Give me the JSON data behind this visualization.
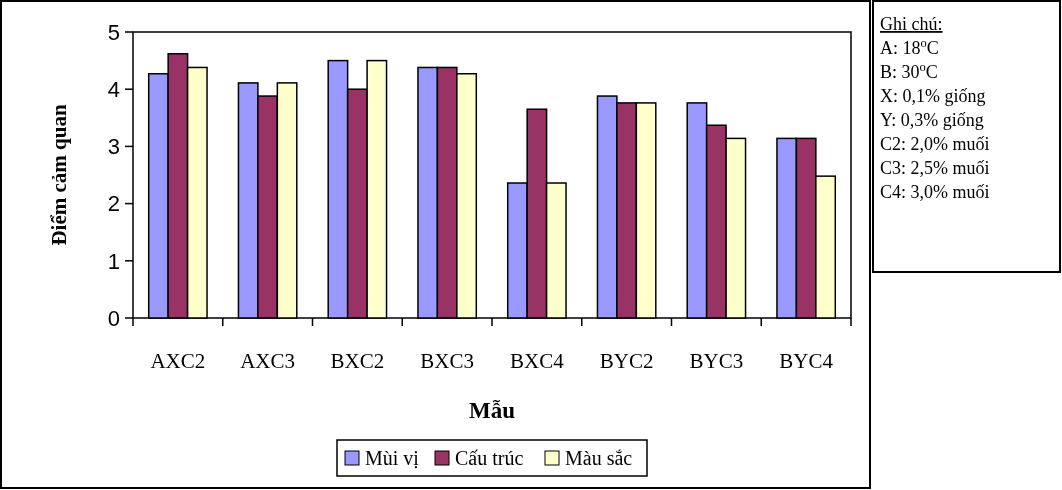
{
  "chart_data": {
    "type": "bar",
    "xlabel": "Mẫu",
    "ylabel": "Điểm cảm quan",
    "categories": [
      "AXC2",
      "AXC3",
      "BXC2",
      "BXC3",
      "BXC4",
      "BYC2",
      "BYC3",
      "BYC4"
    ],
    "series": [
      {
        "name": "Mùi vị",
        "color": "#9999ff",
        "values": [
          4.27,
          4.11,
          4.5,
          4.38,
          2.36,
          3.88,
          3.76,
          3.14
        ]
      },
      {
        "name": "Cấu trúc",
        "color": "#993366",
        "values": [
          4.62,
          3.88,
          4.0,
          4.38,
          3.65,
          3.76,
          3.37,
          3.14
        ]
      },
      {
        "name": "Màu sắc",
        "color": "#ffffcc",
        "values": [
          4.38,
          4.11,
          4.5,
          4.27,
          2.36,
          3.76,
          3.14,
          2.48
        ]
      }
    ],
    "ylim": [
      0,
      5
    ],
    "yticks": [
      0,
      1,
      2,
      3,
      4,
      5
    ],
    "grid": false,
    "legend": "bottom",
    "annotations": [
      "Ghi chú:",
      "A: 18$^{o}$C",
      "B: 30$^{o}$C",
      "X: 0,1% giống",
      "Y: 0,3% giống",
      "C2: 2,0% muối",
      "C3: 2,5% muối",
      "C4: 3,0% muối"
    ]
  }
}
